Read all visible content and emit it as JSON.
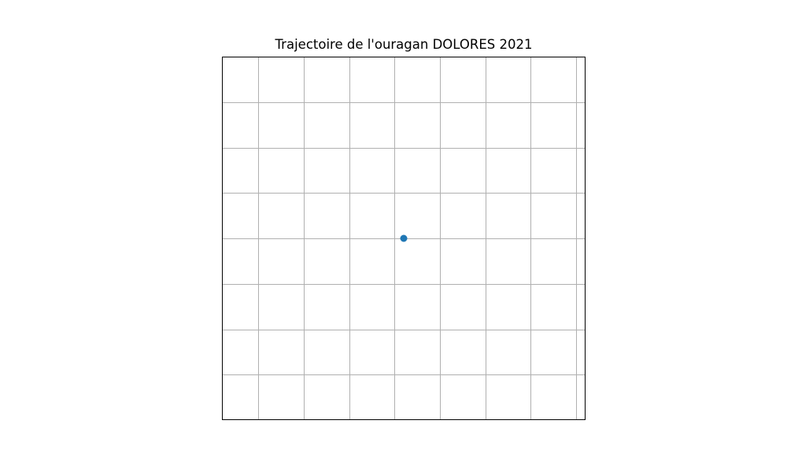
{
  "map": {
    "title": "Trajectoire de l'ouragan DOLORES 2021",
    "track_color": "#1f77b4",
    "grid_color": "#b0b0b0",
    "frame_color": "#000000",
    "grid": true,
    "track_points": 1
  }
}
